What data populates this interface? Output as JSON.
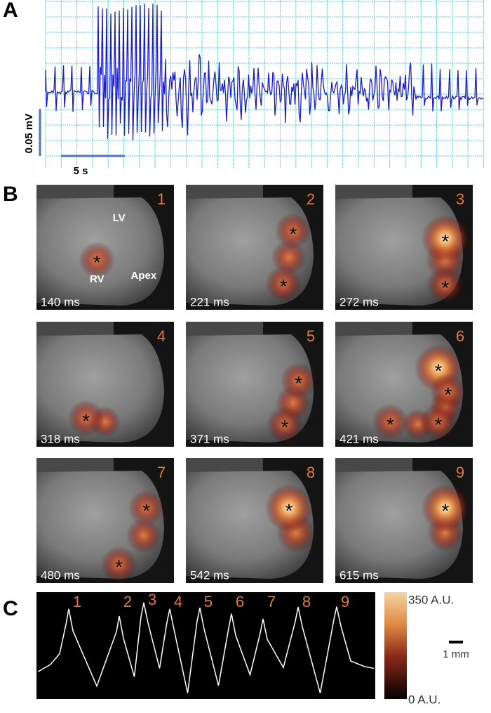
{
  "panel_a": {
    "label": "A",
    "scale_y": "0.05 mV",
    "scale_x": "5 s"
  },
  "panel_b": {
    "label": "B",
    "annotations": [
      "LV",
      "RV",
      "Apex"
    ],
    "frames": [
      {
        "number": "1",
        "time": "140 ms",
        "markers": [
          "*"
        ]
      },
      {
        "number": "2",
        "time": "221 ms",
        "markers": [
          "*",
          "*"
        ]
      },
      {
        "number": "3",
        "time": "272 ms",
        "markers": [
          "*",
          "*"
        ]
      },
      {
        "number": "4",
        "time": "318 ms",
        "markers": [
          "*"
        ]
      },
      {
        "number": "5",
        "time": "371 ms",
        "markers": [
          "*",
          "*"
        ]
      },
      {
        "number": "6",
        "time": "421 ms",
        "markers": [
          "*",
          "*",
          "*",
          "*"
        ]
      },
      {
        "number": "7",
        "time": "480 ms",
        "markers": [
          "*",
          "*"
        ]
      },
      {
        "number": "8",
        "time": "542 ms",
        "markers": [
          "*"
        ]
      },
      {
        "number": "9",
        "time": "615 ms",
        "markers": [
          "*"
        ]
      }
    ]
  },
  "panel_c": {
    "label": "C",
    "peaks": [
      "1",
      "2",
      "3",
      "4",
      "5",
      "6",
      "7",
      "8",
      "9"
    ],
    "colorbar_max": "350 A.U.",
    "colorbar_min": "0 A.U.",
    "scale": "1 mm"
  }
}
